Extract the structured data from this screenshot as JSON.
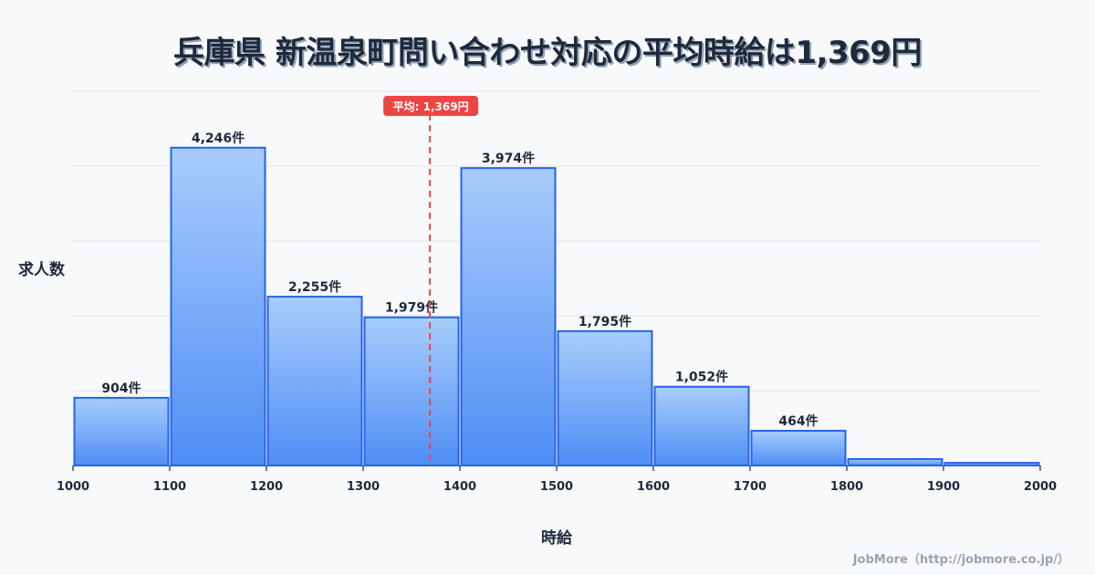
{
  "title": "兵庫県 新温泉町問い合わせ対応の平均時給は1,369円",
  "credit": "JobMore（http://jobmore.co.jp/）",
  "colors": {
    "bar_top": "#a8cdfb",
    "bar_bottom": "#4f8ef5",
    "bar_border": "#2563eb",
    "mean_line": "#ef4444",
    "grid": "#e2e5ec",
    "text": "#1e293b",
    "background": "#f8f9fb"
  },
  "chart_data": {
    "type": "bar",
    "title": "兵庫県 新温泉町問い合わせ対応の平均時給は1,369円",
    "xlabel": "時給",
    "ylabel": "求人数",
    "x_ticks": [
      "1000",
      "1100",
      "1200",
      "1300",
      "1400",
      "1500",
      "1600",
      "1700",
      "1800",
      "1900",
      "2000"
    ],
    "bins": [
      {
        "from": 1000,
        "to": 1100,
        "value": 904,
        "label": "904件"
      },
      {
        "from": 1100,
        "to": 1200,
        "value": 4246,
        "label": "4,246件"
      },
      {
        "from": 1200,
        "to": 1300,
        "value": 2255,
        "label": "2,255件"
      },
      {
        "from": 1300,
        "to": 1400,
        "value": 1979,
        "label": "1,979件"
      },
      {
        "from": 1400,
        "to": 1500,
        "value": 3974,
        "label": "3,974件"
      },
      {
        "from": 1500,
        "to": 1600,
        "value": 1795,
        "label": "1,795件"
      },
      {
        "from": 1600,
        "to": 1700,
        "value": 1052,
        "label": "1,052件"
      },
      {
        "from": 1700,
        "to": 1800,
        "value": 464,
        "label": "464件"
      },
      {
        "from": 1800,
        "to": 1900,
        "value": 85,
        "label": ""
      },
      {
        "from": 1900,
        "to": 2000,
        "value": 35,
        "label": ""
      }
    ],
    "xlim": [
      1000,
      2000
    ],
    "ylim": [
      0,
      5000
    ],
    "grid": true,
    "y_grid_step": 1000,
    "mean": {
      "value": 1369,
      "label": "平均: 1,369円"
    },
    "legend": null
  }
}
